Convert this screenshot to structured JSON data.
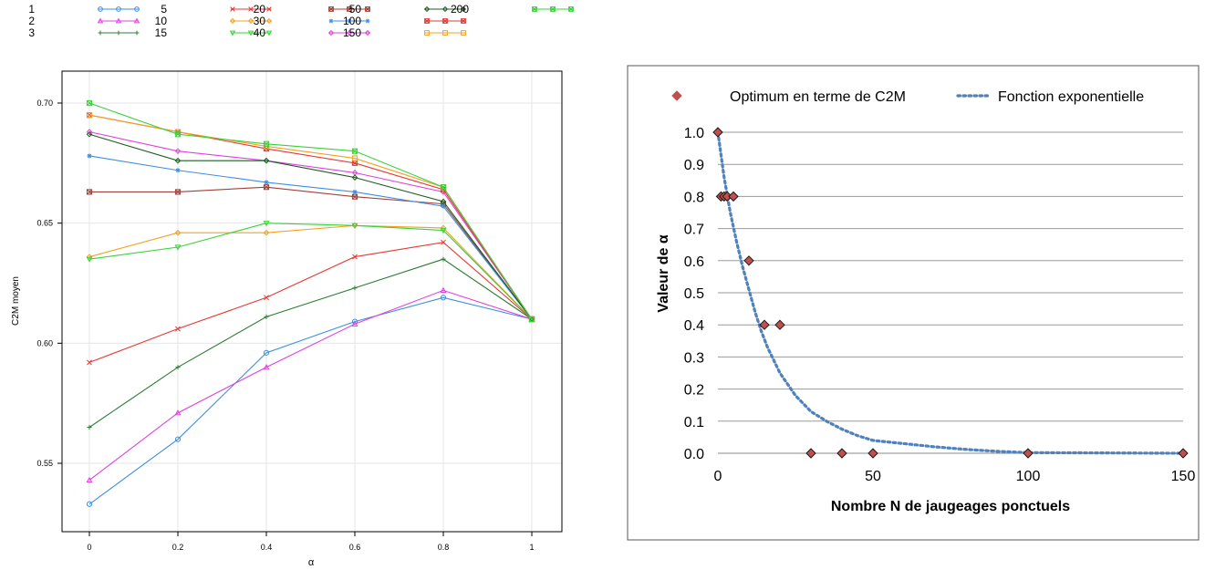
{
  "chart_data": [
    {
      "type": "line",
      "title": "",
      "xlabel": "α",
      "ylabel": "C2M moyen",
      "xlim": [
        0,
        1
      ],
      "ylim": [
        0.53,
        0.71
      ],
      "x": [
        0,
        0.2,
        0.4,
        0.6,
        0.8,
        1
      ],
      "x_tick_labels": [
        "0",
        "0.2",
        "0.4",
        "0.6",
        "0.8",
        "1"
      ],
      "y_ticks": [
        0.55,
        0.6,
        0.65,
        0.7
      ],
      "y_tick_labels": [
        "0.55",
        "0.60",
        "0.65",
        "0.70"
      ],
      "grid": true,
      "legend_position": "top",
      "series": [
        {
          "name": "1",
          "color": "#3d8fe0",
          "marker": "circle",
          "values": [
            0.533,
            0.56,
            0.596,
            0.609,
            0.619,
            0.61
          ]
        },
        {
          "name": "2",
          "color": "#e040e0",
          "marker": "triangle",
          "values": [
            0.543,
            0.571,
            0.59,
            0.608,
            0.622,
            0.61
          ]
        },
        {
          "name": "3",
          "color": "#2e7d32",
          "marker": "plus",
          "values": [
            0.565,
            0.59,
            0.611,
            0.623,
            0.635,
            0.61
          ]
        },
        {
          "name": "5",
          "color": "#e53935",
          "marker": "x",
          "values": [
            0.592,
            0.606,
            0.619,
            0.636,
            0.642,
            0.61
          ]
        },
        {
          "name": "10",
          "color": "#f4a020",
          "marker": "diamond",
          "values": [
            0.636,
            0.646,
            0.646,
            0.649,
            0.648,
            0.61
          ]
        },
        {
          "name": "15",
          "color": "#3ad13a",
          "marker": "triangle-down",
          "values": [
            0.635,
            0.64,
            0.65,
            0.649,
            0.647,
            0.61
          ]
        },
        {
          "name": "20",
          "color": "#a0403a",
          "marker": "square-x",
          "values": [
            0.663,
            0.663,
            0.665,
            0.661,
            0.658,
            0.61
          ]
        },
        {
          "name": "30",
          "color": "#3d8fe0",
          "marker": "asterisk",
          "values": [
            0.678,
            0.672,
            0.667,
            0.663,
            0.657,
            0.61
          ]
        },
        {
          "name": "40",
          "color": "#e040e0",
          "marker": "diamond",
          "values": [
            0.688,
            0.68,
            0.676,
            0.671,
            0.663,
            0.61
          ]
        },
        {
          "name": "50",
          "color": "#1b5e20",
          "marker": "diamond",
          "values": [
            0.687,
            0.676,
            0.676,
            0.669,
            0.659,
            0.61
          ]
        },
        {
          "name": "100",
          "color": "#e53935",
          "marker": "square-x",
          "values": [
            0.695,
            0.688,
            0.681,
            0.675,
            0.664,
            0.61
          ]
        },
        {
          "name": "150",
          "color": "#f4a020",
          "marker": "square",
          "values": [
            0.695,
            0.688,
            0.682,
            0.677,
            0.665,
            0.61
          ]
        },
        {
          "name": "200",
          "color": "#3ad13a",
          "marker": "square-x",
          "values": [
            0.7,
            0.687,
            0.683,
            0.68,
            0.665,
            0.61
          ]
        }
      ]
    },
    {
      "type": "scatter",
      "title": "",
      "xlabel": "Nombre N de jaugeages ponctuels",
      "ylabel": "Valeur de α",
      "xlim": [
        0,
        150
      ],
      "ylim": [
        0,
        1
      ],
      "x_ticks": [
        0,
        50,
        100,
        150
      ],
      "y_ticks": [
        0.0,
        0.1,
        0.2,
        0.3,
        0.4,
        0.5,
        0.6,
        0.7,
        0.8,
        0.9,
        1.0
      ],
      "y_tick_labels": [
        "0.0",
        "0.1",
        "0.2",
        "0.3",
        "0.4",
        "0.5",
        "0.6",
        "0.7",
        "0.8",
        "0.9",
        "1.0"
      ],
      "grid": true,
      "legend_position": "top",
      "series": [
        {
          "name": "Optimum en terme de C2M",
          "color": "#c0504d",
          "marker": "diamond",
          "x": [
            0,
            1,
            2,
            3,
            5,
            10,
            15,
            20,
            30,
            40,
            50,
            100,
            150
          ],
          "y": [
            1.0,
            0.8,
            0.8,
            0.8,
            0.8,
            0.6,
            0.4,
            0.4,
            0.0,
            0.0,
            0.0,
            0.0,
            0.0
          ]
        },
        {
          "name": "Fonction exponentielle",
          "color": "#4f81bd",
          "line_style": "dotted",
          "x": [
            0,
            2,
            4,
            6,
            8,
            10,
            12,
            14,
            16,
            18,
            20,
            25,
            30,
            35,
            40,
            45,
            50,
            60,
            70,
            80,
            90,
            100,
            150
          ],
          "y": [
            1.0,
            0.86,
            0.75,
            0.66,
            0.58,
            0.51,
            0.44,
            0.38,
            0.33,
            0.29,
            0.25,
            0.18,
            0.13,
            0.1,
            0.075,
            0.055,
            0.04,
            0.03,
            0.02,
            0.012,
            0.006,
            0.002,
            0.0
          ]
        }
      ]
    }
  ]
}
